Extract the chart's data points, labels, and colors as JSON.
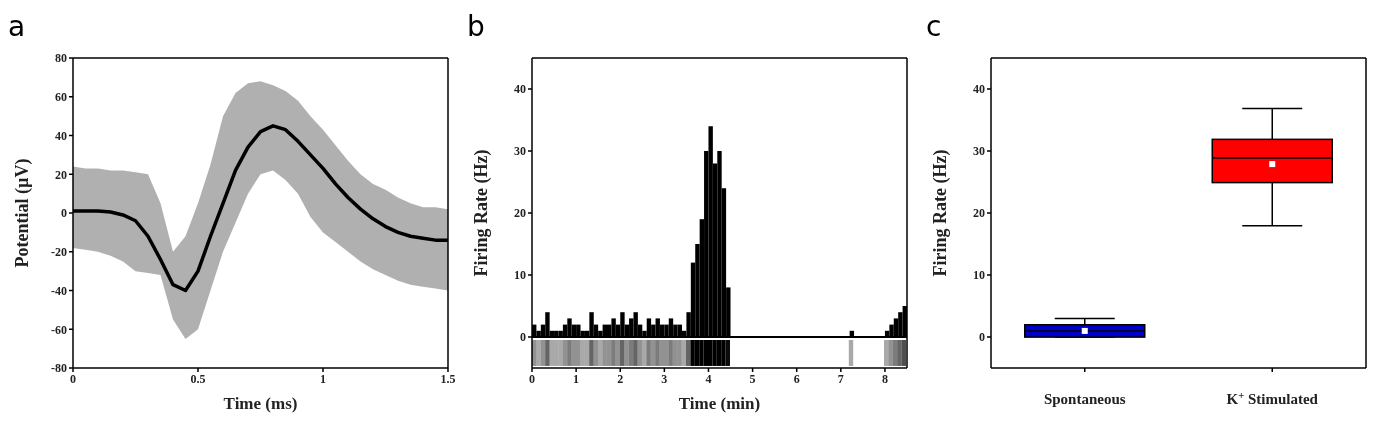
{
  "chart_data": [
    {
      "type": "line",
      "title": "a",
      "xlabel": "Time (ms)",
      "ylabel": "Potential (µV)",
      "xlim": [
        0,
        1.5
      ],
      "xticks": [
        0,
        0.5,
        1,
        1.5
      ],
      "ylim": [
        -80,
        80
      ],
      "yticks": [
        -80,
        -60,
        -40,
        -20,
        0,
        20,
        40,
        60,
        80
      ],
      "x": [
        0,
        0.05,
        0.1,
        0.15,
        0.2,
        0.25,
        0.3,
        0.35,
        0.4,
        0.45,
        0.5,
        0.55,
        0.6,
        0.65,
        0.7,
        0.75,
        0.8,
        0.85,
        0.9,
        0.95,
        1,
        1.05,
        1.1,
        1.15,
        1.2,
        1.25,
        1.3,
        1.35,
        1.4,
        1.45,
        1.5
      ],
      "series": [
        {
          "color": "#000000",
          "values": [
            1,
            1,
            1,
            0.5,
            -1,
            -4,
            -12,
            -24,
            -37,
            -40,
            -30,
            -12,
            5,
            22,
            34,
            42,
            45,
            43,
            37,
            30,
            23,
            15,
            8,
            2,
            -3,
            -7,
            -10,
            -12,
            -13,
            -14,
            -14
          ],
          "lower": [
            -18,
            -19,
            -20,
            -22,
            -25,
            -30,
            -31,
            -32,
            -55,
            -65,
            -60,
            -40,
            -20,
            -5,
            10,
            20,
            22,
            17,
            10,
            -2,
            -10,
            -15,
            -20,
            -25,
            -29,
            -32,
            -35,
            -37,
            -38,
            -39,
            -40
          ],
          "upper": [
            24,
            23,
            23,
            22,
            22,
            21,
            20,
            5,
            -20,
            -12,
            5,
            25,
            50,
            62,
            67,
            68,
            66,
            63,
            58,
            50,
            43,
            35,
            27,
            20,
            15,
            12,
            8,
            5,
            3,
            3,
            2
          ]
        }
      ]
    },
    {
      "type": "histogram",
      "title": "b",
      "xlabel": "Time (min)",
      "ylabel": "Firing Rate (Hz)",
      "xlim": [
        0,
        8.5
      ],
      "xticks": [
        0,
        1,
        2,
        3,
        4,
        5,
        6,
        7,
        8
      ],
      "ylim": [
        -5,
        45
      ],
      "yticks": [
        0,
        10,
        20,
        30,
        40
      ],
      "color": "#000000",
      "bins": [
        0,
        0.1,
        0.2,
        0.3,
        0.4,
        0.5,
        0.6,
        0.7,
        0.8,
        0.9,
        1,
        1.1,
        1.2,
        1.3,
        1.4,
        1.5,
        1.6,
        1.7,
        1.8,
        1.9,
        2,
        2.1,
        2.2,
        2.3,
        2.4,
        2.5,
        2.6,
        2.7,
        2.8,
        2.9,
        3,
        3.1,
        3.2,
        3.3,
        3.4,
        3.5,
        3.6,
        3.7,
        3.8,
        3.9,
        4,
        4.1,
        4.2,
        4.3,
        4.4,
        4.5,
        4.6,
        4.7,
        4.8,
        4.9,
        5,
        5.1,
        5.2,
        5.3,
        5.4,
        5.5,
        5.6,
        5.7,
        5.8,
        5.9,
        6,
        6.1,
        6.2,
        6.3,
        6.4,
        6.5,
        6.6,
        6.7,
        6.8,
        6.9,
        7,
        7.1,
        7.2,
        7.3,
        7.4,
        7.5,
        7.6,
        7.7,
        7.8,
        7.9,
        8,
        8.1,
        8.2,
        8.3,
        8.4,
        8.5
      ],
      "values": [
        2,
        1,
        2,
        4,
        1,
        1,
        1,
        2,
        3,
        2,
        2,
        1,
        1,
        4,
        2,
        1,
        2,
        2,
        3,
        2,
        4,
        2,
        3,
        4,
        2,
        1,
        3,
        2,
        3,
        2,
        2,
        3,
        2,
        2,
        1,
        4,
        12,
        15,
        19,
        30,
        34,
        28,
        30,
        24,
        8,
        0,
        0,
        0,
        0,
        0,
        0,
        0,
        0,
        0,
        0,
        0,
        0,
        0,
        0,
        0,
        0,
        0,
        0,
        0,
        0,
        0,
        0,
        0,
        0,
        0,
        0,
        0,
        1,
        0,
        0,
        0,
        0,
        0,
        0,
        0,
        1,
        2,
        3,
        4,
        5
      ],
      "ref_lines": [
        {
          "axis": "y",
          "value": 0,
          "color": "#000000"
        }
      ]
    },
    {
      "type": "box",
      "title": "c",
      "ylabel": "Firing Rate (Hz)",
      "categories": [
        "Spontaneous",
        "K$^{+}$ Stimulated"
      ],
      "ylim": [
        -5,
        45
      ],
      "yticks": [
        0,
        10,
        20,
        30,
        40
      ],
      "colors": [
        "#0000cc",
        "#ff0000"
      ],
      "boxes": [
        {
          "low": 0,
          "q1": 0,
          "median": 1,
          "q3": 2,
          "high": 3,
          "mean": 1
        },
        {
          "low": 18,
          "q1": 25,
          "median": 29,
          "q3": 32,
          "high": 37,
          "mean": 28
        }
      ]
    }
  ]
}
